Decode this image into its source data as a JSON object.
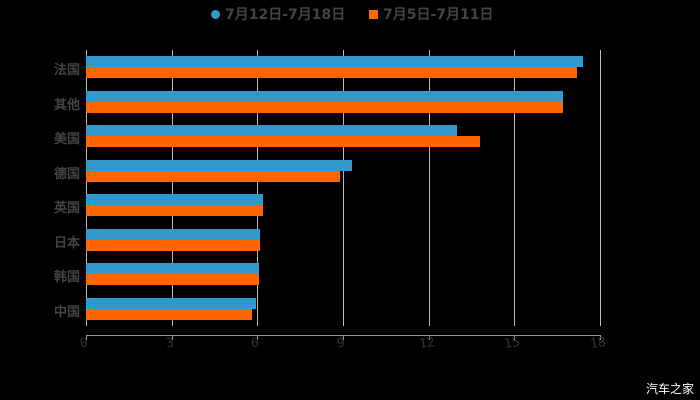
{
  "chart_data": {
    "type": "bar",
    "orientation": "horizontal",
    "title": "",
    "xlabel": "",
    "ylabel": "",
    "categories": [
      "法国",
      "其他",
      "美国",
      "德国",
      "英国",
      "日本",
      "韩国",
      "中国"
    ],
    "series": [
      {
        "name": "7月12日-7月18日",
        "color": "#3399cc",
        "values": [
          17.4,
          16.7,
          13.0,
          9.3,
          6.2,
          6.1,
          6.05,
          5.95
        ]
      },
      {
        "name": "7月5日-7月11日",
        "color": "#ff6600",
        "values": [
          17.2,
          16.7,
          13.8,
          8.9,
          6.2,
          6.1,
          6.05,
          5.8
        ]
      }
    ],
    "xlim": [
      0,
      18
    ],
    "xticks": [
      "0",
      "3",
      "6",
      "9",
      "12",
      "15",
      "18"
    ],
    "grid": true,
    "legend_position": "top"
  },
  "legend": [
    {
      "label": "7月12日-7月18日",
      "color": "#3399cc",
      "shape": "circle"
    },
    {
      "label": "7月5日-7月11日",
      "color": "#ff6600",
      "shape": "square"
    }
  ],
  "watermark": "汽车之家"
}
